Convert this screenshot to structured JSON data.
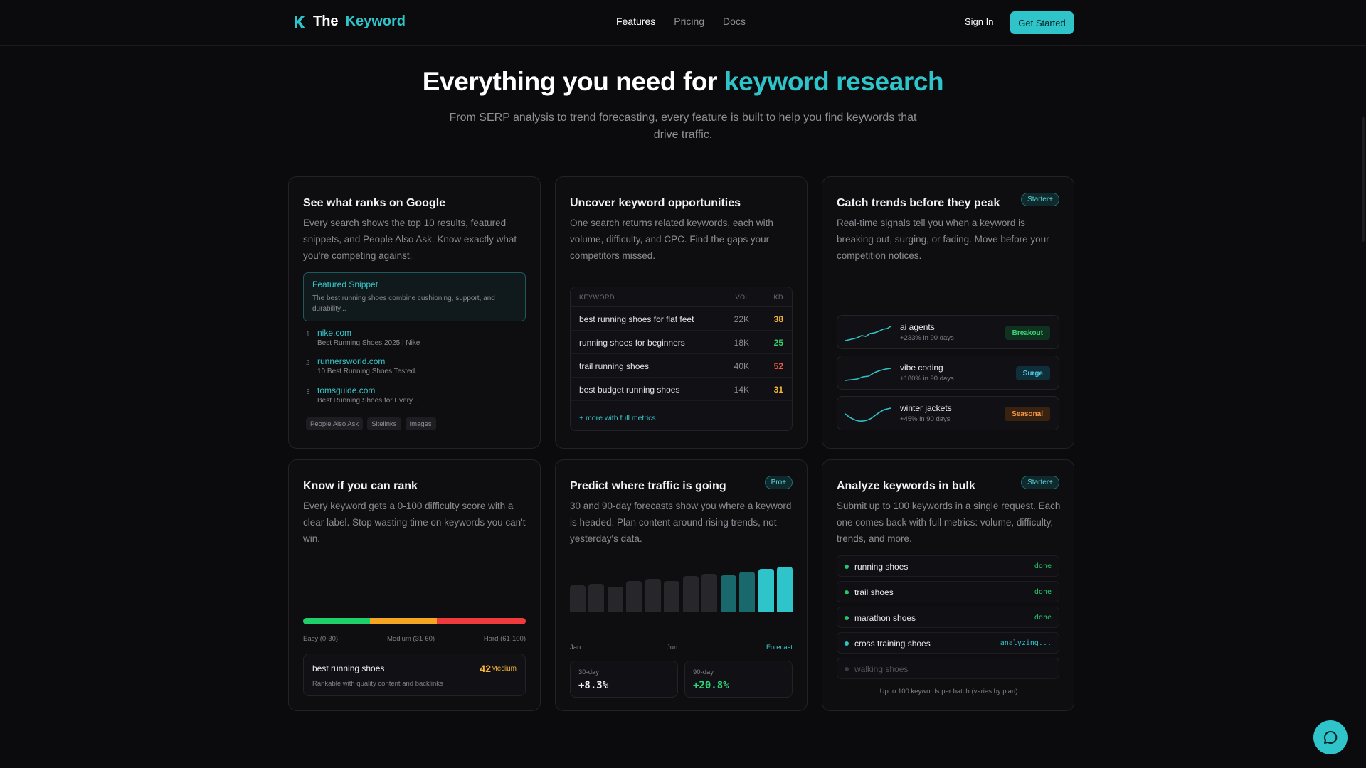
{
  "nav": {
    "brand_the": "The",
    "brand_keyword": "Keyword",
    "links": [
      "Features",
      "Pricing",
      "Docs"
    ],
    "signin": "Sign In",
    "cta": "Get Started"
  },
  "hero": {
    "title_part1": "Everything you need for",
    "title_highlight": "keyword research",
    "subtitle": "From SERP analysis to trend forecasting, every feature is built to help you find keywords that drive traffic."
  },
  "serp": {
    "title": "See what ranks on Google",
    "desc": "Every search shows the top 10 results, featured snippets, and People Also Ask. Know exactly what you're competing against.",
    "snippet_title": "Featured Snippet",
    "snippet_body": "The best running shoes combine cushioning, support, and durability...",
    "results": [
      {
        "n": "1",
        "domain": "nike.com",
        "title": "Best Running Shoes 2025 | Nike"
      },
      {
        "n": "2",
        "domain": "runnersworld.com",
        "title": "10 Best Running Shoes Tested..."
      },
      {
        "n": "3",
        "domain": "tomsguide.com",
        "title": "Best Running Shoes for Every..."
      }
    ],
    "chips": [
      "People Also Ask",
      "Sitelinks",
      "Images"
    ]
  },
  "opps": {
    "title": "Uncover keyword opportunities",
    "desc": "One search returns related keywords, each with volume, difficulty, and CPC. Find the gaps your competitors missed.",
    "headers": [
      "KEYWORD",
      "VOL",
      "KD"
    ],
    "rows": [
      {
        "kw": "best running shoes for flat feet",
        "vol": "22K",
        "kd": "38",
        "color": "#f4b43a"
      },
      {
        "kw": "running shoes for beginners",
        "vol": "18K",
        "kd": "25",
        "color": "#32d070"
      },
      {
        "kw": "trail running shoes",
        "vol": "40K",
        "kd": "52",
        "color": "#ef5a4a"
      },
      {
        "kw": "best budget running shoes",
        "vol": "14K",
        "kd": "31",
        "color": "#f4b43a"
      }
    ],
    "more": "+ more with full metrics"
  },
  "trends": {
    "title": "Catch trends before they peak",
    "badge": "Starter+",
    "desc": "Real-time signals tell you when a keyword is breaking out, surging, or fading. Move before your competition notices.",
    "items": [
      {
        "kw": "ai agents",
        "growth": "+233% in 90 days",
        "tag": "Breakout",
        "tag_bg": "#10331f",
        "tag_fg": "#3dd37a"
      },
      {
        "kw": "vibe coding",
        "growth": "+180% in 90 days",
        "tag": "Surge",
        "tag_bg": "#0f2f3a",
        "tag_fg": "#4ec7e0"
      },
      {
        "kw": "winter jackets",
        "growth": "+45% in 90 days",
        "tag": "Seasonal",
        "tag_bg": "#3a2210",
        "tag_fg": "#f39a4a"
      }
    ]
  },
  "difficulty": {
    "title": "Know if you can rank",
    "desc": "Every keyword gets a 0-100 difficulty score with a clear label. Stop wasting time on keywords you can't win.",
    "labels": [
      "Easy (0-30)",
      "Medium (31-60)",
      "Hard (61-100)"
    ],
    "example_kw": "best running shoes",
    "example_sub": "Rankable with quality content and backlinks",
    "score": "42",
    "level": "Medium",
    "colors": {
      "easy": "#1fcf6a",
      "medium": "#f5a623",
      "hard": "#ef3b3b"
    }
  },
  "forecast": {
    "title": "Predict where traffic is going",
    "badge": "Pro+",
    "desc": "30 and 90-day forecasts show you where a keyword is headed. Plan content around rising trends, not yesterday's data.",
    "x_labels": [
      "Jan",
      "Jun",
      "Forecast"
    ],
    "bar_levels": [
      0.6,
      0.63,
      0.57,
      0.69,
      0.74,
      0.69,
      0.79,
      0.84,
      0.82,
      0.89,
      0.95,
      1.0
    ],
    "label_30": "30-day",
    "value_30": "+8.3%",
    "label_90": "90-day",
    "value_90": "+20.8%"
  },
  "bulk": {
    "title": "Analyze keywords in bulk",
    "badge": "Starter+",
    "desc": "Submit up to 100 keywords in a single request. Each one comes back with full metrics: volume, difficulty, trends, and more.",
    "items": [
      {
        "kw": "running shoes",
        "status": "done"
      },
      {
        "kw": "trail shoes",
        "status": "done"
      },
      {
        "kw": "marathon shoes",
        "status": "done"
      },
      {
        "kw": "cross training shoes",
        "status": "analyzing..."
      },
      {
        "kw": "walking shoes",
        "status": ""
      }
    ],
    "note": "Up to 100 keywords per batch (varies by plan)"
  },
  "colors": {
    "accent": "#2ec4c9",
    "background": "#0b0b0d"
  }
}
